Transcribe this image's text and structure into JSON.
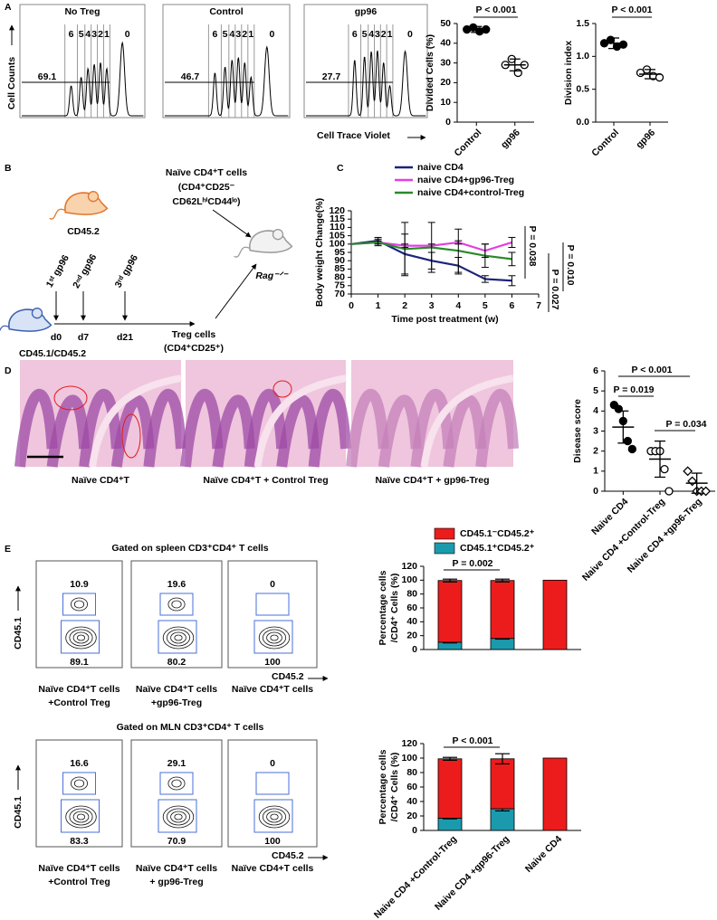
{
  "panel_labels": [
    "A",
    "B",
    "C",
    "D",
    "E"
  ],
  "panel_a": {
    "y_label": "Cell Counts",
    "x_label": "Cell Trace Violet",
    "histograms": [
      {
        "title": "No Treg",
        "divisions": [
          "6",
          "5",
          "4",
          "3",
          "2",
          "1",
          "0"
        ],
        "undivided": 69.1
      },
      {
        "title": "Control",
        "divisions": [
          "6",
          "5",
          "4",
          "3",
          "2",
          "1",
          "0"
        ],
        "undivided": 46.7
      },
      {
        "title": "gp96",
        "divisions": [
          "6",
          "5",
          "4",
          "3",
          "2",
          "1",
          "0"
        ],
        "undivided": 27.7
      }
    ]
  },
  "panel_b": {
    "donor": "CD45.2",
    "naive": [
      "Naïve CD4⁺T cells",
      "(CD4⁺CD25⁻",
      "CD62LʰⁱCD44ˡᵒ)"
    ],
    "injections": [
      "1ˢᵗ gp96",
      "2ⁿᵈ gp96",
      "3ʳᵈ gp96"
    ],
    "days": [
      "d0",
      "d7",
      "d21"
    ],
    "host": "CD45.1/CD45.2",
    "treg": [
      "Treg cells",
      "(CD4⁺CD25⁺)"
    ],
    "recipient": "Rag⁻ᐟ⁻"
  },
  "panel_d": {
    "captions": [
      "Naïve CD4⁺T",
      "Naïve CD4⁺T + Control Treg",
      "Naïve CD4⁺T + gp96-Treg"
    ]
  },
  "panel_e": {
    "y_label": "CD45.1",
    "x_label": "CD45.2",
    "top": {
      "title": "Gated on spleen CD3⁺CD4⁺ T cells",
      "plots": [
        {
          "upper": 10.9,
          "lower": 89.1,
          "caption": [
            "Naïve CD4⁺T cells",
            "+Control Treg"
          ]
        },
        {
          "upper": 19.6,
          "lower": 80.2,
          "caption": [
            "Naïve CD4⁺T cells",
            "+gp96-Treg"
          ]
        },
        {
          "upper": 0,
          "lower": 100,
          "caption": [
            "Naïve CD4⁺T cells"
          ]
        }
      ]
    },
    "bottom": {
      "title": "Gated on MLN CD3⁺CD4⁺ T cells",
      "plots": [
        {
          "upper": 16.6,
          "lower": 83.3,
          "caption": [
            "Naïve CD4⁺T cells",
            "+Control Treg"
          ]
        },
        {
          "upper": 29.1,
          "lower": 70.9,
          "caption": [
            "Naïve CD4⁺T cells",
            "+ gp96-Treg"
          ]
        },
        {
          "upper": 0,
          "lower": 100,
          "caption": [
            "Naïve CD4+T cells"
          ]
        }
      ]
    }
  },
  "chart_data": [
    {
      "type": "dot",
      "y_label": "Divided Cells (%)",
      "categories": [
        "Control",
        "gp96"
      ],
      "values": [
        [
          47,
          48,
          46,
          47
        ],
        [
          29,
          32,
          25,
          29
        ]
      ],
      "means": [
        47,
        29
      ],
      "sds": [
        1.5,
        3
      ],
      "markers": [
        "filled-circle",
        "open-circle"
      ],
      "color": "#000000",
      "ylim": [
        0,
        50
      ],
      "yticks": [
        0,
        10,
        20,
        30,
        40,
        50
      ],
      "annotations": [
        "P < 0.001"
      ]
    },
    {
      "type": "dot",
      "y_label": "Division index",
      "categories": [
        "Control",
        "gp96"
      ],
      "values": [
        [
          1.2,
          1.25,
          1.15,
          1.18
        ],
        [
          0.75,
          0.8,
          0.7,
          0.68
        ]
      ],
      "means": [
        1.2,
        0.73
      ],
      "sds": [
        0.08,
        0.07
      ],
      "markers": [
        "filled-circle",
        "open-circle"
      ],
      "color": "#000000",
      "ylim": [
        0,
        1.5
      ],
      "yticks": [
        {
          "value": 0,
          "label": "0.0"
        },
        {
          "value": 0.5,
          "label": "0.5"
        },
        {
          "value": 1,
          "label": "1.0"
        },
        {
          "value": 1.5,
          "label": "1.5"
        }
      ],
      "annotations": [
        "P < 0.001"
      ]
    },
    {
      "type": "line",
      "x_label": "Time post treatment (w)",
      "y_label": "Body weight Change(%)",
      "x": [
        0,
        1,
        2,
        3,
        4,
        5,
        6
      ],
      "series": [
        {
          "name": "naive CD4",
          "color": "#1c237a",
          "values": [
            100,
            102,
            94,
            90,
            87,
            79,
            78
          ],
          "errors": [
            0,
            2,
            12,
            5,
            5,
            2,
            3
          ]
        },
        {
          "name": "naive CD4+gp96-Treg",
          "color": "#e23fe2",
          "values": [
            100,
            101,
            99,
            99,
            101,
            96,
            101
          ],
          "errors": [
            0,
            1,
            1,
            1,
            1,
            4,
            3
          ]
        },
        {
          "name": "naive CD4+control-Treg",
          "color": "#2a8a2a",
          "values": [
            100,
            101,
            97,
            98,
            96,
            93,
            91
          ],
          "errors": [
            0,
            2,
            16,
            15,
            13,
            7,
            4
          ]
        }
      ],
      "xlim": [
        0,
        7
      ],
      "xticks": [
        0,
        1,
        2,
        3,
        4,
        5,
        6,
        7
      ],
      "ylim": [
        70,
        120
      ],
      "yticks": [
        70,
        75,
        80,
        85,
        90,
        95,
        100,
        105,
        110,
        115,
        120
      ],
      "legend": "top",
      "annotations": [
        "P = 0.038",
        "P = 0.010",
        "P = 0.027"
      ]
    },
    {
      "type": "dot",
      "y_label": "Disease score",
      "categories": [
        "Naive CD4",
        "Naive CD4 +Control-Treg",
        "Naive CD4 +gp96-Treg"
      ],
      "values": [
        [
          4.3,
          4.1,
          3.5,
          2.5,
          2.1
        ],
        [
          2,
          2,
          2,
          1.1,
          0
        ],
        [
          1,
          0.5,
          0,
          0,
          0
        ]
      ],
      "means": [
        3.2,
        1.6,
        0.4
      ],
      "sds": [
        0.8,
        0.9,
        0.5
      ],
      "markers": [
        "filled-circle",
        "open-circle",
        "open-diamond"
      ],
      "color": "#000000",
      "ylim": [
        0,
        6
      ],
      "yticks": [
        0,
        1,
        2,
        3,
        4,
        5,
        6
      ],
      "annotations": [
        "P < 0.001",
        "P = 0.019",
        "P = 0.034"
      ]
    },
    {
      "type": "stacked_bar",
      "y_label": [
        "Percentage cells",
        "/CD4⁺ Cells (%)"
      ],
      "categories": [
        null,
        null,
        null
      ],
      "series": [
        {
          "name": "CD45.1⁺CD45.2⁺",
          "color": "#1b9aae",
          "values": [
            10.5,
            16,
            0
          ],
          "errors": [
            1,
            1,
            0
          ]
        },
        {
          "name": "CD45.1⁻CD45.2⁺",
          "color": "#ec1c1c",
          "values": [
            89,
            83.5,
            100
          ],
          "errors": [
            2,
            2,
            0
          ]
        }
      ],
      "ylim": [
        0,
        120
      ],
      "yticks": [
        0,
        20,
        40,
        60,
        80,
        100,
        120
      ],
      "legend": "top",
      "annotations": [
        "P = 0.002"
      ]
    },
    {
      "type": "stacked_bar",
      "y_label": [
        "Percentage cells",
        "/CD4⁺ Cells (%)"
      ],
      "categories": [
        "Naive CD4 +Control-Treg",
        "Naive CD4 +gp96-Treg",
        "Naive CD4"
      ],
      "series": [
        {
          "name": "CD45.1⁺CD45.2⁺",
          "color": "#1b9aae",
          "values": [
            17,
            30,
            0
          ],
          "errors": [
            1,
            3,
            0
          ]
        },
        {
          "name": "CD45.1⁻CD45.2⁺",
          "color": "#ec1c1c",
          "values": [
            82,
            69,
            100
          ],
          "errors": [
            2,
            7,
            0
          ]
        }
      ],
      "ylim": [
        0,
        120
      ],
      "yticks": [
        0,
        20,
        40,
        60,
        80,
        100,
        120
      ],
      "annotations": [
        "P < 0.001"
      ]
    }
  ]
}
